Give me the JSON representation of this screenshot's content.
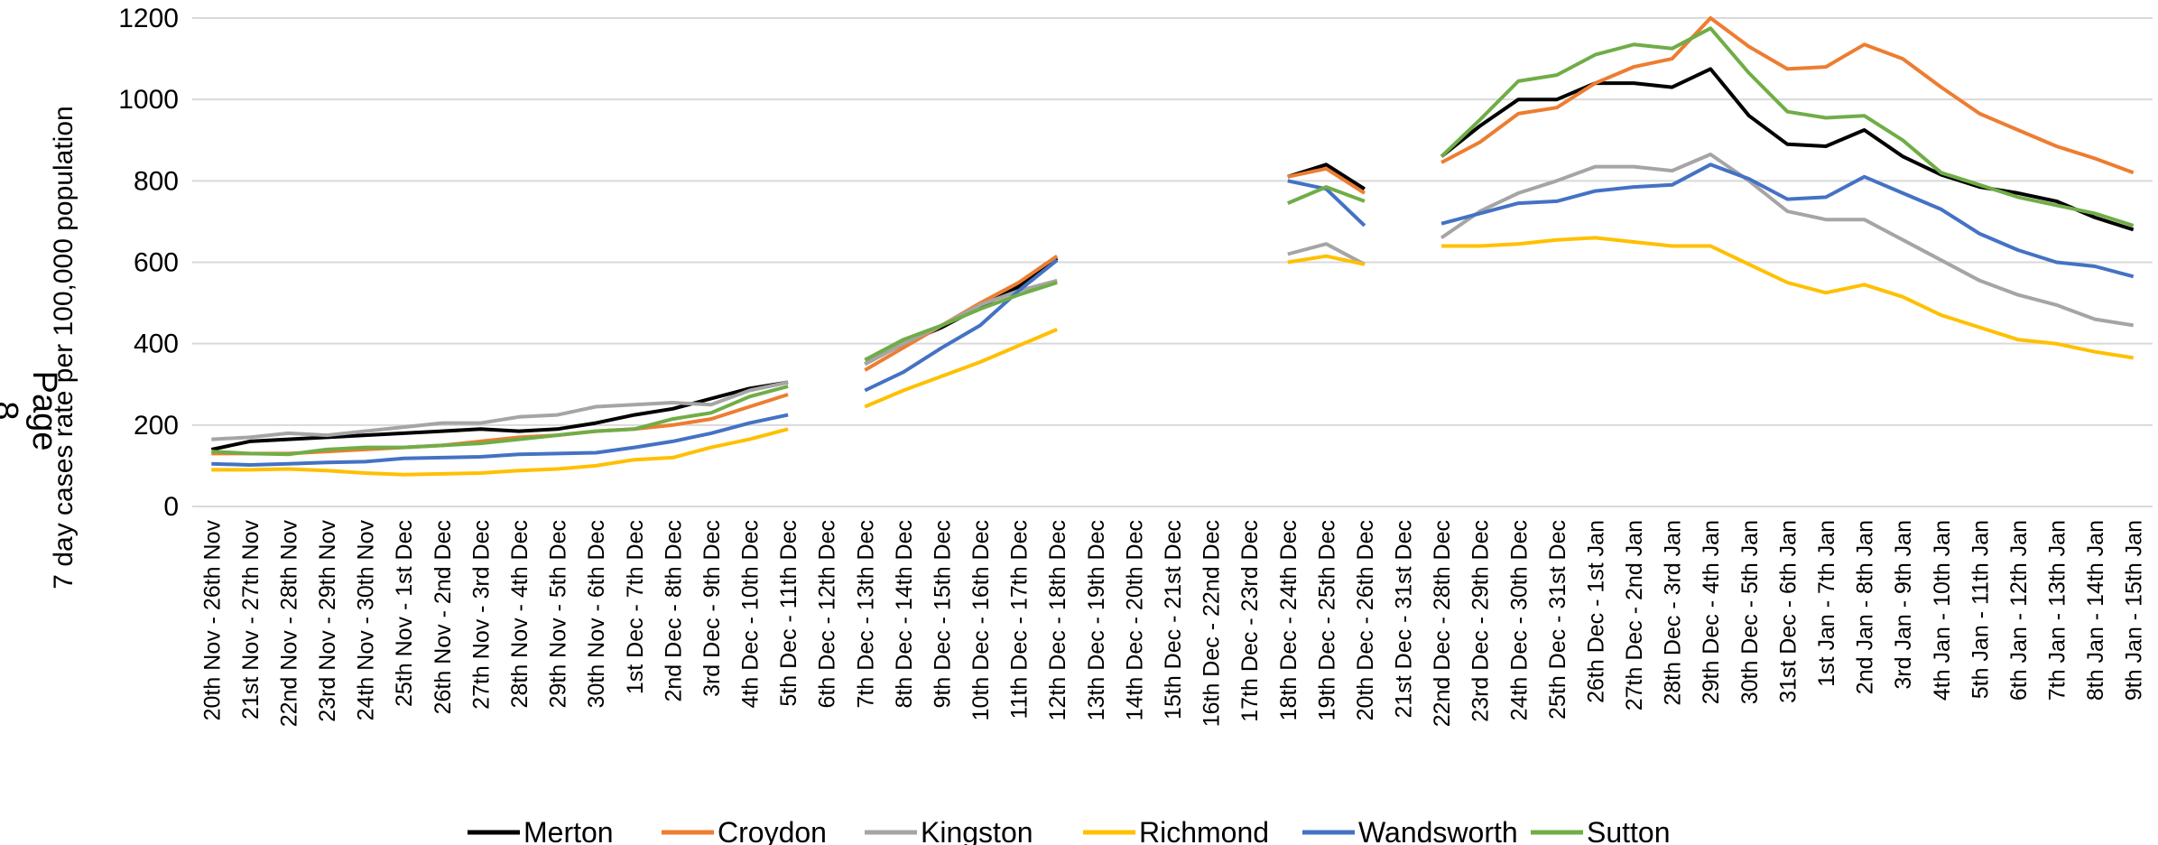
{
  "page_label": "Page 8",
  "chart_data": {
    "type": "line",
    "title": "",
    "xlabel": "",
    "ylabel": "7 day cases rate per 100,000 population",
    "ylim": [
      0,
      1200
    ],
    "yticks": [
      0,
      200,
      400,
      600,
      800,
      1000,
      1200
    ],
    "grid": true,
    "legend_position": "bottom",
    "categories": [
      "20th Nov - 26th Nov",
      "21st Nov - 27th Nov",
      "22nd Nov - 28th Nov",
      "23rd Nov - 29th Nov",
      "24th Nov - 30th Nov",
      "25th Nov - 1st Dec",
      "26th Nov - 2nd Dec",
      "27th Nov - 3rd Dec",
      "28th Nov - 4th Dec",
      "29th Nov - 5th Dec",
      "30th Nov - 6th Dec",
      "1st Dec - 7th Dec",
      "2nd Dec - 8th Dec",
      "3rd Dec - 9th Dec",
      "4th Dec - 10th Dec",
      "5th Dec - 11th Dec",
      "6th Dec - 12th Dec",
      "7th Dec - 13th Dec",
      "8th Dec - 14th Dec",
      "9th Dec - 15th Dec",
      "10th Dec - 16th Dec",
      "11th Dec - 17th Dec",
      "12th Dec - 18th Dec",
      "13th Dec - 19th Dec",
      "14th Dec - 20th Dec",
      "15th Dec - 21st Dec",
      "16th Dec - 22nd Dec",
      "17th Dec - 23rd Dec",
      "18th Dec - 24th Dec",
      "19th Dec - 25th Dec",
      "20th Dec - 26th Dec",
      "21st Dec - 31st Dec",
      "22nd Dec - 28th Dec",
      "23rd Dec - 29th Dec",
      "24th Dec - 30th Dec",
      "25th Dec - 31st Dec",
      "26th Dec - 1st Jan",
      "27th Dec - 2nd Jan",
      "28th Dec - 3rd Jan",
      "29th Dec - 4th Jan",
      "30th Dec - 5th Jan",
      "31st Dec - 6th Jan",
      "1st Jan - 7th Jan",
      "2nd Jan - 8th Jan",
      "3rd Jan - 9th Jan",
      "4th Jan - 10th Jan",
      "5th Jan - 11th Jan",
      "6th Jan - 12th Jan",
      "7th Jan - 13th Jan",
      "8th Jan - 14th Jan",
      "9th Jan - 15th Jan"
    ],
    "series": [
      {
        "name": "Merton",
        "color": "#000000",
        "values": [
          140,
          160,
          165,
          170,
          175,
          180,
          185,
          190,
          185,
          190,
          205,
          225,
          240,
          265,
          290,
          305,
          null,
          350,
          400,
          440,
          490,
          540,
          610,
          null,
          null,
          null,
          null,
          null,
          810,
          840,
          780,
          null,
          860,
          935,
          1000,
          1000,
          1040,
          1040,
          1030,
          1075,
          960,
          890,
          885,
          925,
          860,
          815,
          785,
          770,
          750,
          710,
          680
        ]
      },
      {
        "name": "Croydon",
        "color": "#ED7D31",
        "values": [
          130,
          130,
          130,
          135,
          140,
          145,
          150,
          160,
          170,
          175,
          185,
          190,
          200,
          215,
          245,
          275,
          null,
          335,
          390,
          445,
          500,
          550,
          615,
          null,
          null,
          null,
          null,
          null,
          810,
          830,
          770,
          null,
          845,
          895,
          965,
          980,
          1040,
          1080,
          1100,
          1200,
          1130,
          1075,
          1080,
          1135,
          1100,
          1030,
          965,
          925,
          885,
          855,
          820
        ]
      },
      {
        "name": "Kingston",
        "color": "#A5A5A5",
        "values": [
          165,
          170,
          180,
          175,
          185,
          195,
          205,
          205,
          220,
          225,
          245,
          250,
          255,
          250,
          285,
          305,
          null,
          350,
          400,
          445,
          495,
          530,
          555,
          null,
          null,
          null,
          null,
          null,
          620,
          645,
          595,
          null,
          660,
          725,
          770,
          800,
          835,
          835,
          825,
          865,
          800,
          725,
          705,
          705,
          655,
          605,
          555,
          520,
          495,
          460,
          445
        ]
      },
      {
        "name": "Richmond",
        "color": "#FFC000",
        "values": [
          90,
          90,
          92,
          88,
          82,
          78,
          80,
          82,
          88,
          92,
          100,
          115,
          120,
          145,
          165,
          190,
          null,
          245,
          285,
          320,
          355,
          395,
          435,
          null,
          null,
          null,
          null,
          null,
          600,
          615,
          595,
          null,
          640,
          640,
          645,
          655,
          660,
          650,
          640,
          640,
          595,
          550,
          525,
          545,
          515,
          470,
          440,
          410,
          400,
          380,
          365
        ]
      },
      {
        "name": "Wandsworth",
        "color": "#4472C4",
        "values": [
          105,
          102,
          105,
          108,
          110,
          118,
          120,
          122,
          128,
          130,
          132,
          145,
          160,
          180,
          205,
          225,
          null,
          285,
          330,
          390,
          445,
          530,
          605,
          null,
          null,
          null,
          null,
          null,
          800,
          780,
          690,
          null,
          695,
          720,
          745,
          750,
          775,
          785,
          790,
          840,
          805,
          755,
          760,
          810,
          770,
          730,
          670,
          630,
          600,
          590,
          565
        ]
      },
      {
        "name": "Sutton",
        "color": "#70AD47",
        "values": [
          135,
          130,
          128,
          140,
          145,
          145,
          150,
          155,
          165,
          175,
          185,
          190,
          215,
          230,
          270,
          295,
          null,
          360,
          410,
          445,
          485,
          520,
          550,
          null,
          null,
          null,
          null,
          null,
          745,
          785,
          750,
          null,
          860,
          950,
          1045,
          1060,
          1110,
          1135,
          1125,
          1175,
          1065,
          970,
          955,
          960,
          900,
          820,
          790,
          760,
          740,
          720,
          690
        ]
      }
    ]
  }
}
